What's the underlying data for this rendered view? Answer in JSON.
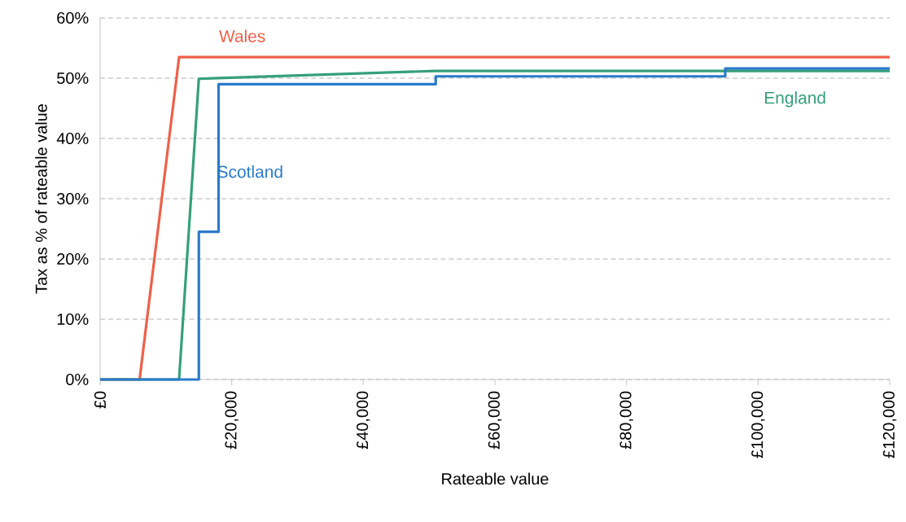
{
  "chart_data": {
    "type": "line",
    "xlabel": "Rateable value",
    "ylabel": "Tax as % of rateable value",
    "xlim": [
      0,
      120000
    ],
    "ylim": [
      0,
      60
    ],
    "xticks": [
      {
        "value": 0,
        "label": "£0"
      },
      {
        "value": 20000,
        "label": "£20,000"
      },
      {
        "value": 40000,
        "label": "£40,000"
      },
      {
        "value": 60000,
        "label": "£60,000"
      },
      {
        "value": 80000,
        "label": "£80,000"
      },
      {
        "value": 100000,
        "label": "£100,000"
      },
      {
        "value": 120000,
        "label": "£120,000"
      }
    ],
    "yticks": [
      {
        "value": 0,
        "label": "0%"
      },
      {
        "value": 10,
        "label": "10%"
      },
      {
        "value": 20,
        "label": "20%"
      },
      {
        "value": 30,
        "label": "30%"
      },
      {
        "value": 40,
        "label": "40%"
      },
      {
        "value": 50,
        "label": "50%"
      },
      {
        "value": 60,
        "label": "60%"
      }
    ],
    "grid": "y",
    "series": [
      {
        "name": "Wales",
        "color": "#ee6049",
        "x": [
          0,
          6000,
          12000,
          120000
        ],
        "values": [
          0,
          0,
          53.5,
          53.5
        ]
      },
      {
        "name": "England",
        "color": "#35a079",
        "x": [
          0,
          12000,
          15000,
          51000,
          120000
        ],
        "values": [
          0,
          0,
          49.9,
          51.2,
          51.2
        ]
      },
      {
        "name": "Scotland",
        "color": "#2a7bca",
        "x": [
          0,
          15000,
          15000,
          18000,
          18000,
          51000,
          51000,
          95000,
          95000,
          120000
        ],
        "values": [
          0,
          0,
          24.5,
          24.5,
          49,
          49,
          50.3,
          50.3,
          51.6,
          51.6
        ]
      }
    ]
  }
}
